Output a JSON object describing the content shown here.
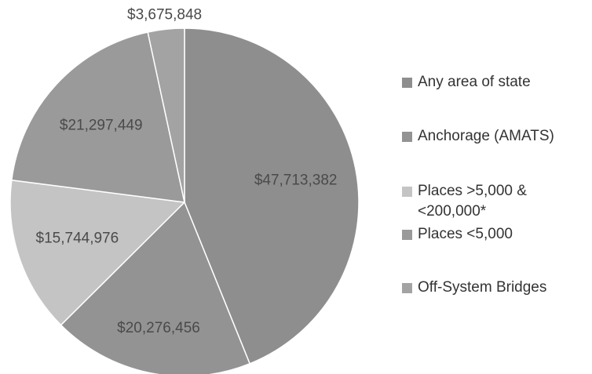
{
  "chart_data": {
    "type": "pie",
    "categories": [
      "Any area of state",
      "Anchorage (AMATS)",
      "Places >5,000 & <200,000*",
      "Places <5,000",
      "Off-System Bridges"
    ],
    "values": [
      47713382,
      20276456,
      15744976,
      21297449,
      3675848
    ],
    "value_labels": [
      "$47,713,382",
      "$20,276,456",
      "$15,744,976",
      "$21,297,449",
      "$3,675,848"
    ],
    "colors": [
      "#8e8e8e",
      "#939393",
      "#c4c4c4",
      "#9a9a9a",
      "#a3a3a3"
    ],
    "legend": "right"
  }
}
